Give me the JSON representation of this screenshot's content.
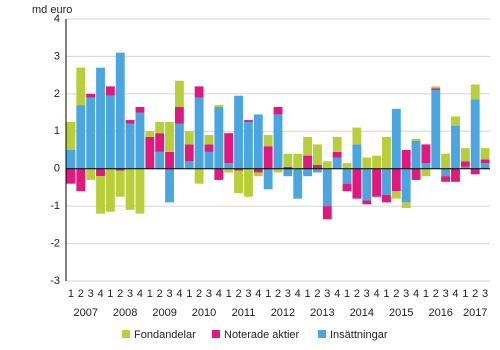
{
  "chart_data": {
    "type": "stacked-bar",
    "y_label": "md euro",
    "categories": [
      "1",
      "2",
      "3",
      "4",
      "1",
      "2",
      "3",
      "4",
      "1",
      "2",
      "3",
      "4",
      "1",
      "2",
      "3",
      "4",
      "1",
      "2",
      "3",
      "4",
      "1",
      "2",
      "3",
      "4",
      "1",
      "2",
      "3",
      "4",
      "1",
      "2",
      "3",
      "4",
      "1",
      "2",
      "3",
      "4",
      "1",
      "2",
      "3",
      "4",
      "1",
      "2",
      "3"
    ],
    "year_labels": [
      "2007",
      "2008",
      "2009",
      "2010",
      "2011",
      "2012",
      "2013",
      "2014",
      "2015",
      "2016",
      "2017"
    ],
    "series": [
      {
        "name": "Insättningar",
        "color": "#4ba6e0",
        "values": [
          0.5,
          1.7,
          1.9,
          2.7,
          1.95,
          3.1,
          1.2,
          1.5,
          0.0,
          0.45,
          -0.9,
          1.2,
          0.2,
          1.9,
          0.45,
          1.65,
          0.15,
          1.95,
          1.25,
          1.45,
          -0.55,
          1.45,
          -0.2,
          -0.8,
          -0.2,
          -0.1,
          -1.0,
          0.3,
          -0.4,
          0.65,
          -0.85,
          0.0,
          -0.7,
          1.6,
          -0.9,
          0.75,
          0.15,
          2.1,
          -0.2,
          1.15,
          0.05,
          1.85,
          0.15
        ]
      },
      {
        "name": "Noterade aktier",
        "color": "#e0197d",
        "values": [
          -0.4,
          -0.6,
          0.1,
          -0.2,
          0.25,
          -0.05,
          0.1,
          0.15,
          0.85,
          0.5,
          0.45,
          0.45,
          0.45,
          0.3,
          0.2,
          -0.3,
          0.8,
          -0.05,
          0.05,
          -0.1,
          0.6,
          0.2,
          0.05,
          0.0,
          0.35,
          0.1,
          -0.35,
          0.15,
          -0.2,
          -0.8,
          -0.1,
          -0.75,
          -0.2,
          -0.6,
          0.5,
          -0.3,
          0.5,
          0.05,
          -0.15,
          -0.35,
          0.15,
          -0.15,
          0.1
        ]
      },
      {
        "name": "Fondandelar",
        "color": "#b8cf3b",
        "values": [
          0.75,
          1.0,
          -0.3,
          -1.0,
          -1.15,
          -0.7,
          -1.1,
          -1.2,
          0.15,
          0.3,
          0.8,
          0.7,
          0.35,
          -0.4,
          0.25,
          0.05,
          -0.1,
          -0.6,
          -0.75,
          -0.1,
          0.3,
          -0.1,
          0.35,
          0.4,
          0.5,
          0.55,
          0.2,
          0.4,
          0.15,
          0.45,
          0.3,
          0.35,
          0.85,
          -0.2,
          -0.15,
          0.05,
          -0.2,
          0.05,
          0.4,
          0.25,
          0.35,
          0.4,
          0.3
        ]
      }
    ],
    "legend_order": [
      2,
      1,
      0
    ],
    "ylim": [
      -3,
      4
    ],
    "yticks": [
      -3,
      -2,
      -1,
      0,
      1,
      2,
      3,
      4
    ],
    "grid": true
  }
}
